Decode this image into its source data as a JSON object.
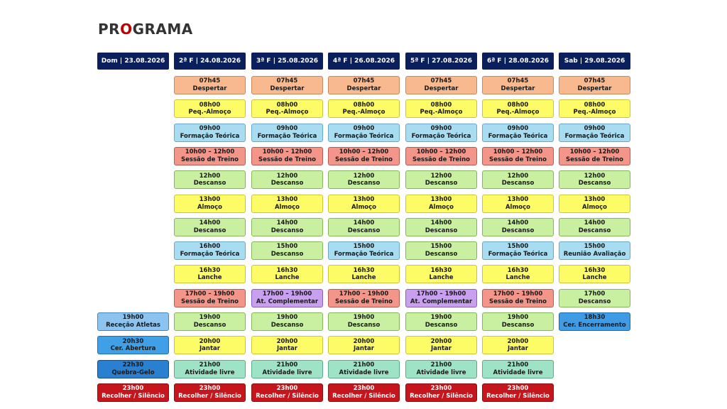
{
  "title": {
    "prefix": "PR",
    "accent": "O",
    "suffix": "GRAMA"
  },
  "colors": {
    "header_bg": "#0b1f5c",
    "title_accent": "#c00000",
    "despertar": "#f8b98e",
    "almoco": "#fdfb66",
    "teoria": "#a8dcf0",
    "treino": "#f4958a",
    "descanso": "#c9efa0",
    "complementar": "#c9a0f0",
    "livre": "#9fe3c6",
    "recolher": "#c4161c"
  },
  "days": [
    {
      "header": "Dom | 23.08.2026",
      "slots": [
        {
          "row": 10,
          "time": "19h00",
          "label": "Receção Atletas",
          "kind": "rececao"
        },
        {
          "row": 11,
          "time": "20h30",
          "label": "Cer. Abertura",
          "kind": "abertura"
        },
        {
          "row": 12,
          "time": "22h30",
          "label": "Quebra-Gelo",
          "kind": "quebra"
        },
        {
          "row": 13,
          "time": "23h00",
          "label": "Recolher / Silêncio",
          "kind": "recolher"
        }
      ]
    },
    {
      "header": "2ª F | 24.08.2026",
      "slots": [
        {
          "row": 0,
          "time": "07h45",
          "label": "Despertar",
          "kind": "despertar"
        },
        {
          "row": 1,
          "time": "08h00",
          "label": "Peq.-Almoço",
          "kind": "almoco"
        },
        {
          "row": 2,
          "time": "09h00",
          "label": "Formação Teórica",
          "kind": "teoria"
        },
        {
          "row": 3,
          "time": "10h00 – 12h00",
          "label": "Sessão de Treino",
          "kind": "treino"
        },
        {
          "row": 4,
          "time": "12h00",
          "label": "Descanso",
          "kind": "descanso"
        },
        {
          "row": 5,
          "time": "13h00",
          "label": "Almoço",
          "kind": "almoco"
        },
        {
          "row": 6,
          "time": "14h00",
          "label": "Descanso",
          "kind": "descanso"
        },
        {
          "row": 7,
          "time": "16h00",
          "label": "Formação Teórica",
          "kind": "teoria"
        },
        {
          "row": 8,
          "time": "16h30",
          "label": "Lanche",
          "kind": "almoco"
        },
        {
          "row": 9,
          "time": "17h00 – 19h00",
          "label": "Sessão de Treino",
          "kind": "treino"
        },
        {
          "row": 10,
          "time": "19h00",
          "label": "Descanso",
          "kind": "descanso"
        },
        {
          "row": 11,
          "time": "20h00",
          "label": "Jantar",
          "kind": "almoco"
        },
        {
          "row": 12,
          "time": "21h00",
          "label": "Atividade livre",
          "kind": "livre"
        },
        {
          "row": 13,
          "time": "23h00",
          "label": "Recolher / Silêncio",
          "kind": "recolher"
        }
      ]
    },
    {
      "header": "3ª F | 25.08.2026",
      "slots": [
        {
          "row": 0,
          "time": "07h45",
          "label": "Despertar",
          "kind": "despertar"
        },
        {
          "row": 1,
          "time": "08h00",
          "label": "Peq.-Almoço",
          "kind": "almoco"
        },
        {
          "row": 2,
          "time": "09h00",
          "label": "Formação Teórica",
          "kind": "teoria"
        },
        {
          "row": 3,
          "time": "10h00 – 12h00",
          "label": "Sessão de Treino",
          "kind": "treino"
        },
        {
          "row": 4,
          "time": "12h00",
          "label": "Descanso",
          "kind": "descanso"
        },
        {
          "row": 5,
          "time": "13h00",
          "label": "Almoço",
          "kind": "almoco"
        },
        {
          "row": 6,
          "time": "14h00",
          "label": "Descanso",
          "kind": "descanso"
        },
        {
          "row": 7,
          "time": "15h00",
          "label": "Descanso",
          "kind": "descanso"
        },
        {
          "row": 8,
          "time": "16h30",
          "label": "Lanche",
          "kind": "almoco"
        },
        {
          "row": 9,
          "time": "17h00 – 19h00",
          "label": "At. Complementar",
          "kind": "comp"
        },
        {
          "row": 10,
          "time": "19h00",
          "label": "Descanso",
          "kind": "descanso"
        },
        {
          "row": 11,
          "time": "20h00",
          "label": "Jantar",
          "kind": "almoco"
        },
        {
          "row": 12,
          "time": "21h00",
          "label": "Atividade livre",
          "kind": "livre"
        },
        {
          "row": 13,
          "time": "23h00",
          "label": "Recolher / Silêncio",
          "kind": "recolher"
        }
      ]
    },
    {
      "header": "4ª F | 26.08.2026",
      "slots": [
        {
          "row": 0,
          "time": "07h45",
          "label": "Despertar",
          "kind": "despertar"
        },
        {
          "row": 1,
          "time": "08h00",
          "label": "Peq.-Almoço",
          "kind": "almoco"
        },
        {
          "row": 2,
          "time": "09h00",
          "label": "Formação Teórica",
          "kind": "teoria"
        },
        {
          "row": 3,
          "time": "10h00 – 12h00",
          "label": "Sessão de Treino",
          "kind": "treino"
        },
        {
          "row": 4,
          "time": "12h00",
          "label": "Descanso",
          "kind": "descanso"
        },
        {
          "row": 5,
          "time": "13h00",
          "label": "Almoço",
          "kind": "almoco"
        },
        {
          "row": 6,
          "time": "14h00",
          "label": "Descanso",
          "kind": "descanso"
        },
        {
          "row": 7,
          "time": "15h00",
          "label": "Formação Teórica",
          "kind": "teoria"
        },
        {
          "row": 8,
          "time": "16h30",
          "label": "Lanche",
          "kind": "almoco"
        },
        {
          "row": 9,
          "time": "17h00 – 19h00",
          "label": "Sessão de Treino",
          "kind": "treino"
        },
        {
          "row": 10,
          "time": "19h00",
          "label": "Descanso",
          "kind": "descanso"
        },
        {
          "row": 11,
          "time": "20h00",
          "label": "Jantar",
          "kind": "almoco"
        },
        {
          "row": 12,
          "time": "21h00",
          "label": "Atividade livre",
          "kind": "livre"
        },
        {
          "row": 13,
          "time": "23h00",
          "label": "Recolher / Silêncio",
          "kind": "recolher"
        }
      ]
    },
    {
      "header": "5ª F | 27.08.2026",
      "slots": [
        {
          "row": 0,
          "time": "07h45",
          "label": "Despertar",
          "kind": "despertar"
        },
        {
          "row": 1,
          "time": "08h00",
          "label": "Peq.-Almoço",
          "kind": "almoco"
        },
        {
          "row": 2,
          "time": "09h00",
          "label": "Formação Teórica",
          "kind": "teoria"
        },
        {
          "row": 3,
          "time": "10h00 – 12h00",
          "label": "Sessão de Treino",
          "kind": "treino"
        },
        {
          "row": 4,
          "time": "12h00",
          "label": "Descanso",
          "kind": "descanso"
        },
        {
          "row": 5,
          "time": "13h00",
          "label": "Almoço",
          "kind": "almoco"
        },
        {
          "row": 6,
          "time": "14h00",
          "label": "Descanso",
          "kind": "descanso"
        },
        {
          "row": 7,
          "time": "15h00",
          "label": "Descanso",
          "kind": "descanso"
        },
        {
          "row": 8,
          "time": "16h30",
          "label": "Lanche",
          "kind": "almoco"
        },
        {
          "row": 9,
          "time": "17h00 – 19h00",
          "label": "At. Complementar",
          "kind": "comp"
        },
        {
          "row": 10,
          "time": "19h00",
          "label": "Descanso",
          "kind": "descanso"
        },
        {
          "row": 11,
          "time": "20h00",
          "label": "Jantar",
          "kind": "almoco"
        },
        {
          "row": 12,
          "time": "21h00",
          "label": "Atividade livre",
          "kind": "livre"
        },
        {
          "row": 13,
          "time": "23h00",
          "label": "Recolher / Silêncio",
          "kind": "recolher"
        }
      ]
    },
    {
      "header": "6ª F | 28.08.2026",
      "slots": [
        {
          "row": 0,
          "time": "07h45",
          "label": "Despertar",
          "kind": "despertar"
        },
        {
          "row": 1,
          "time": "08h00",
          "label": "Peq.-Almoço",
          "kind": "almoco"
        },
        {
          "row": 2,
          "time": "09h00",
          "label": "Formação Teórica",
          "kind": "teoria"
        },
        {
          "row": 3,
          "time": "10h00 – 12h00",
          "label": "Sessão de Treino",
          "kind": "treino"
        },
        {
          "row": 4,
          "time": "12h00",
          "label": "Descanso",
          "kind": "descanso"
        },
        {
          "row": 5,
          "time": "13h00",
          "label": "Almoço",
          "kind": "almoco"
        },
        {
          "row": 6,
          "time": "14h00",
          "label": "Descanso",
          "kind": "descanso"
        },
        {
          "row": 7,
          "time": "15h00",
          "label": "Formação Teórica",
          "kind": "teoria"
        },
        {
          "row": 8,
          "time": "16h30",
          "label": "Lanche",
          "kind": "almoco"
        },
        {
          "row": 9,
          "time": "17h00 – 19h00",
          "label": "Sessão de Treino",
          "kind": "treino"
        },
        {
          "row": 10,
          "time": "19h00",
          "label": "Descanso",
          "kind": "descanso"
        },
        {
          "row": 11,
          "time": "20h00",
          "label": "Jantar",
          "kind": "almoco"
        },
        {
          "row": 12,
          "time": "21h00",
          "label": "Atividade livre",
          "kind": "livre"
        },
        {
          "row": 13,
          "time": "23h00",
          "label": "Recolher / Silêncio",
          "kind": "recolher"
        }
      ]
    },
    {
      "header": "Sab | 29.08.2026",
      "slots": [
        {
          "row": 0,
          "time": "07h45",
          "label": "Despertar",
          "kind": "despertar"
        },
        {
          "row": 1,
          "time": "08h00",
          "label": "Peq.-Almoço",
          "kind": "almoco"
        },
        {
          "row": 2,
          "time": "09h00",
          "label": "Formação Teórica",
          "kind": "teoria"
        },
        {
          "row": 3,
          "time": "10h00 – 12h00",
          "label": "Sessão de Treino",
          "kind": "treino"
        },
        {
          "row": 4,
          "time": "12h00",
          "label": "Descanso",
          "kind": "descanso"
        },
        {
          "row": 5,
          "time": "13h00",
          "label": "Almoço",
          "kind": "almoco"
        },
        {
          "row": 6,
          "time": "14h00",
          "label": "Descanso",
          "kind": "descanso"
        },
        {
          "row": 7,
          "time": "15h00",
          "label": "Reunião Avaliação",
          "kind": "teoria"
        },
        {
          "row": 8,
          "time": "16h30",
          "label": "Lanche",
          "kind": "almoco"
        },
        {
          "row": 9,
          "time": "17h00",
          "label": "Descanso",
          "kind": "descanso"
        },
        {
          "row": 10,
          "time": "18h30",
          "label": "Cer. Encerramento",
          "kind": "encerra"
        }
      ]
    }
  ]
}
